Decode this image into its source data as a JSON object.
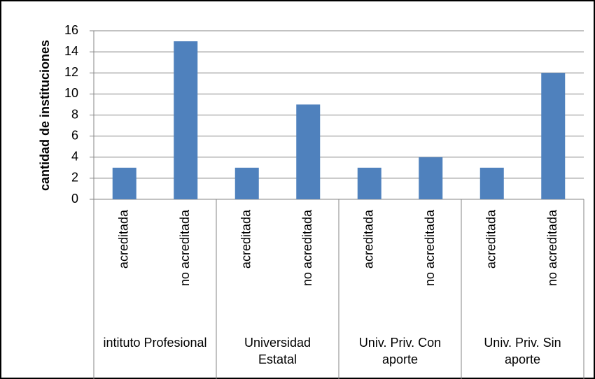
{
  "chart_data": {
    "type": "bar",
    "y_label": "cantidad de instituciones",
    "categories": [
      "acreditada",
      "no acreditada",
      "acreditada",
      "no acreditada",
      "acreditada",
      "no acreditada",
      "acreditada",
      "no acreditada"
    ],
    "groups": [
      "intituto Profesional",
      "Universidad Estatal",
      "Univ. Priv. Con aporte",
      "Univ. Priv. Sin aporte"
    ],
    "values": [
      3,
      15,
      3,
      9,
      3,
      4,
      3,
      12
    ],
    "color": "#4f81bd",
    "ylim": [
      0,
      16
    ],
    "yticks": [
      0,
      2,
      4,
      6,
      8,
      10,
      12,
      14,
      16
    ],
    "grid": true
  }
}
